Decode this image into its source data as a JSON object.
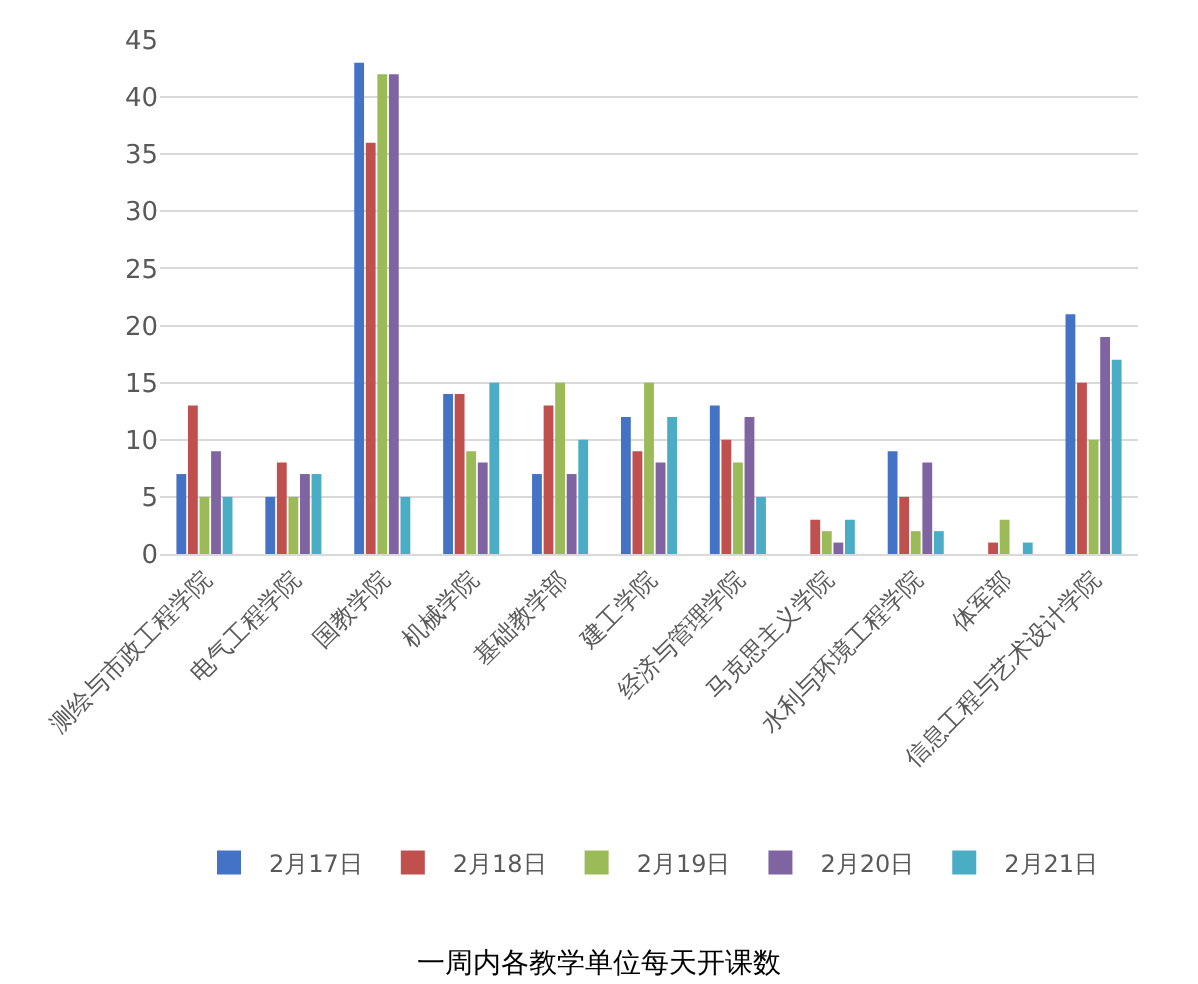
{
  "chart_data": {
    "type": "bar",
    "title": "一周内各教学单位每天开课数",
    "categories": [
      "测绘与市政工程学院",
      "电气工程学院",
      "国教学院",
      "机械学院",
      "基础教学部",
      "建工学院",
      "经济与管理学院",
      "马克思主义学院",
      "水利与环境工程学院",
      "体军部",
      "信息工程与艺术设计学院"
    ],
    "series": [
      {
        "name": "2月17日",
        "color": "#4472c4",
        "values": [
          7,
          5,
          43,
          14,
          7,
          12,
          13,
          0,
          9,
          0,
          21
        ]
      },
      {
        "name": "2月18日",
        "color": "#c0504d",
        "values": [
          13,
          8,
          36,
          14,
          13,
          9,
          10,
          3,
          5,
          1,
          15
        ]
      },
      {
        "name": "2月19日",
        "color": "#9bbb59",
        "values": [
          5,
          5,
          42,
          9,
          15,
          15,
          8,
          2,
          2,
          3,
          10
        ]
      },
      {
        "name": "2月20日",
        "color": "#8064a2",
        "values": [
          9,
          7,
          42,
          8,
          7,
          8,
          12,
          1,
          8,
          0,
          19
        ]
      },
      {
        "name": "2月21日",
        "color": "#4bacc6",
        "values": [
          5,
          7,
          5,
          15,
          10,
          12,
          5,
          3,
          2,
          1,
          17
        ]
      }
    ],
    "ylim": [
      0,
      45
    ],
    "yticks": [
      0,
      5,
      10,
      15,
      20,
      25,
      30,
      35,
      40,
      45
    ],
    "grid": "y",
    "legend": "bottom"
  }
}
